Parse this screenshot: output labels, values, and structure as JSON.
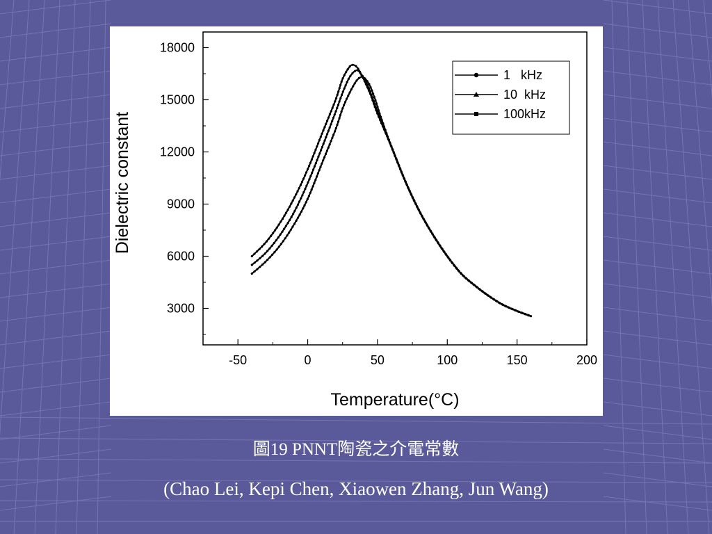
{
  "theme": {
    "background": "#5a5a9a",
    "grid_line": "#7c7cb8",
    "caption_color": "#ffffff",
    "series_color": "#000000"
  },
  "caption": {
    "line1": "圖19 PNNT陶瓷之介電常數",
    "line2": "(Chao Lei, Kepi Chen, Xiaowen Zhang, Jun Wang)"
  },
  "chart_data": {
    "type": "line",
    "title": "",
    "xlabel": "Temperature(°C)",
    "ylabel": "Dielectric constant",
    "xlim": [
      -75,
      200
    ],
    "ylim": [
      900,
      18900
    ],
    "xticks": [
      -50,
      0,
      50,
      100,
      150,
      200
    ],
    "xtick_labels": [
      "-50",
      "0",
      "50",
      "100",
      "150",
      "200"
    ],
    "yticks": [
      3000,
      6000,
      9000,
      12000,
      15000,
      18000
    ],
    "ytick_labels": [
      "3000",
      "6000",
      "9000",
      "12000",
      "15000",
      "18000"
    ],
    "grid": false,
    "legend": "top-right",
    "series": [
      {
        "name": "1   kHz",
        "marker": "circle",
        "x": [
          -40,
          -30,
          -20,
          -10,
          0,
          10,
          20,
          25,
          30,
          33,
          36,
          40,
          45,
          50,
          60,
          70,
          80,
          90,
          100,
          110,
          120,
          130,
          140,
          150,
          160
        ],
        "values": [
          6000,
          6800,
          7900,
          9300,
          11000,
          13000,
          15000,
          16200,
          16900,
          17000,
          16800,
          16200,
          15300,
          14200,
          12300,
          10300,
          8600,
          7200,
          6000,
          5000,
          4300,
          3700,
          3200,
          2850,
          2550
        ]
      },
      {
        "name": "10  kHz",
        "marker": "triangle",
        "x": [
          -40,
          -30,
          -20,
          -10,
          0,
          10,
          20,
          25,
          30,
          35,
          38,
          42,
          46,
          50,
          60,
          70,
          80,
          90,
          100,
          110,
          120,
          130,
          140,
          150,
          160
        ],
        "values": [
          5500,
          6200,
          7200,
          8500,
          10200,
          12200,
          14300,
          15400,
          16300,
          16700,
          16500,
          16000,
          15200,
          14300,
          12300,
          10300,
          8600,
          7200,
          6000,
          5000,
          4300,
          3700,
          3200,
          2850,
          2550
        ]
      },
      {
        "name": "100kHz",
        "marker": "square",
        "x": [
          -40,
          -30,
          -20,
          -10,
          0,
          10,
          20,
          25,
          30,
          35,
          38,
          40,
          44,
          48,
          52,
          60,
          70,
          80,
          90,
          100,
          110,
          120,
          130,
          140,
          150,
          160
        ],
        "values": [
          5000,
          5700,
          6600,
          7800,
          9300,
          11300,
          13300,
          14500,
          15400,
          16100,
          16300,
          16300,
          15900,
          15100,
          14100,
          12300,
          10300,
          8600,
          7200,
          6000,
          5000,
          4300,
          3700,
          3200,
          2850,
          2550
        ]
      }
    ]
  }
}
